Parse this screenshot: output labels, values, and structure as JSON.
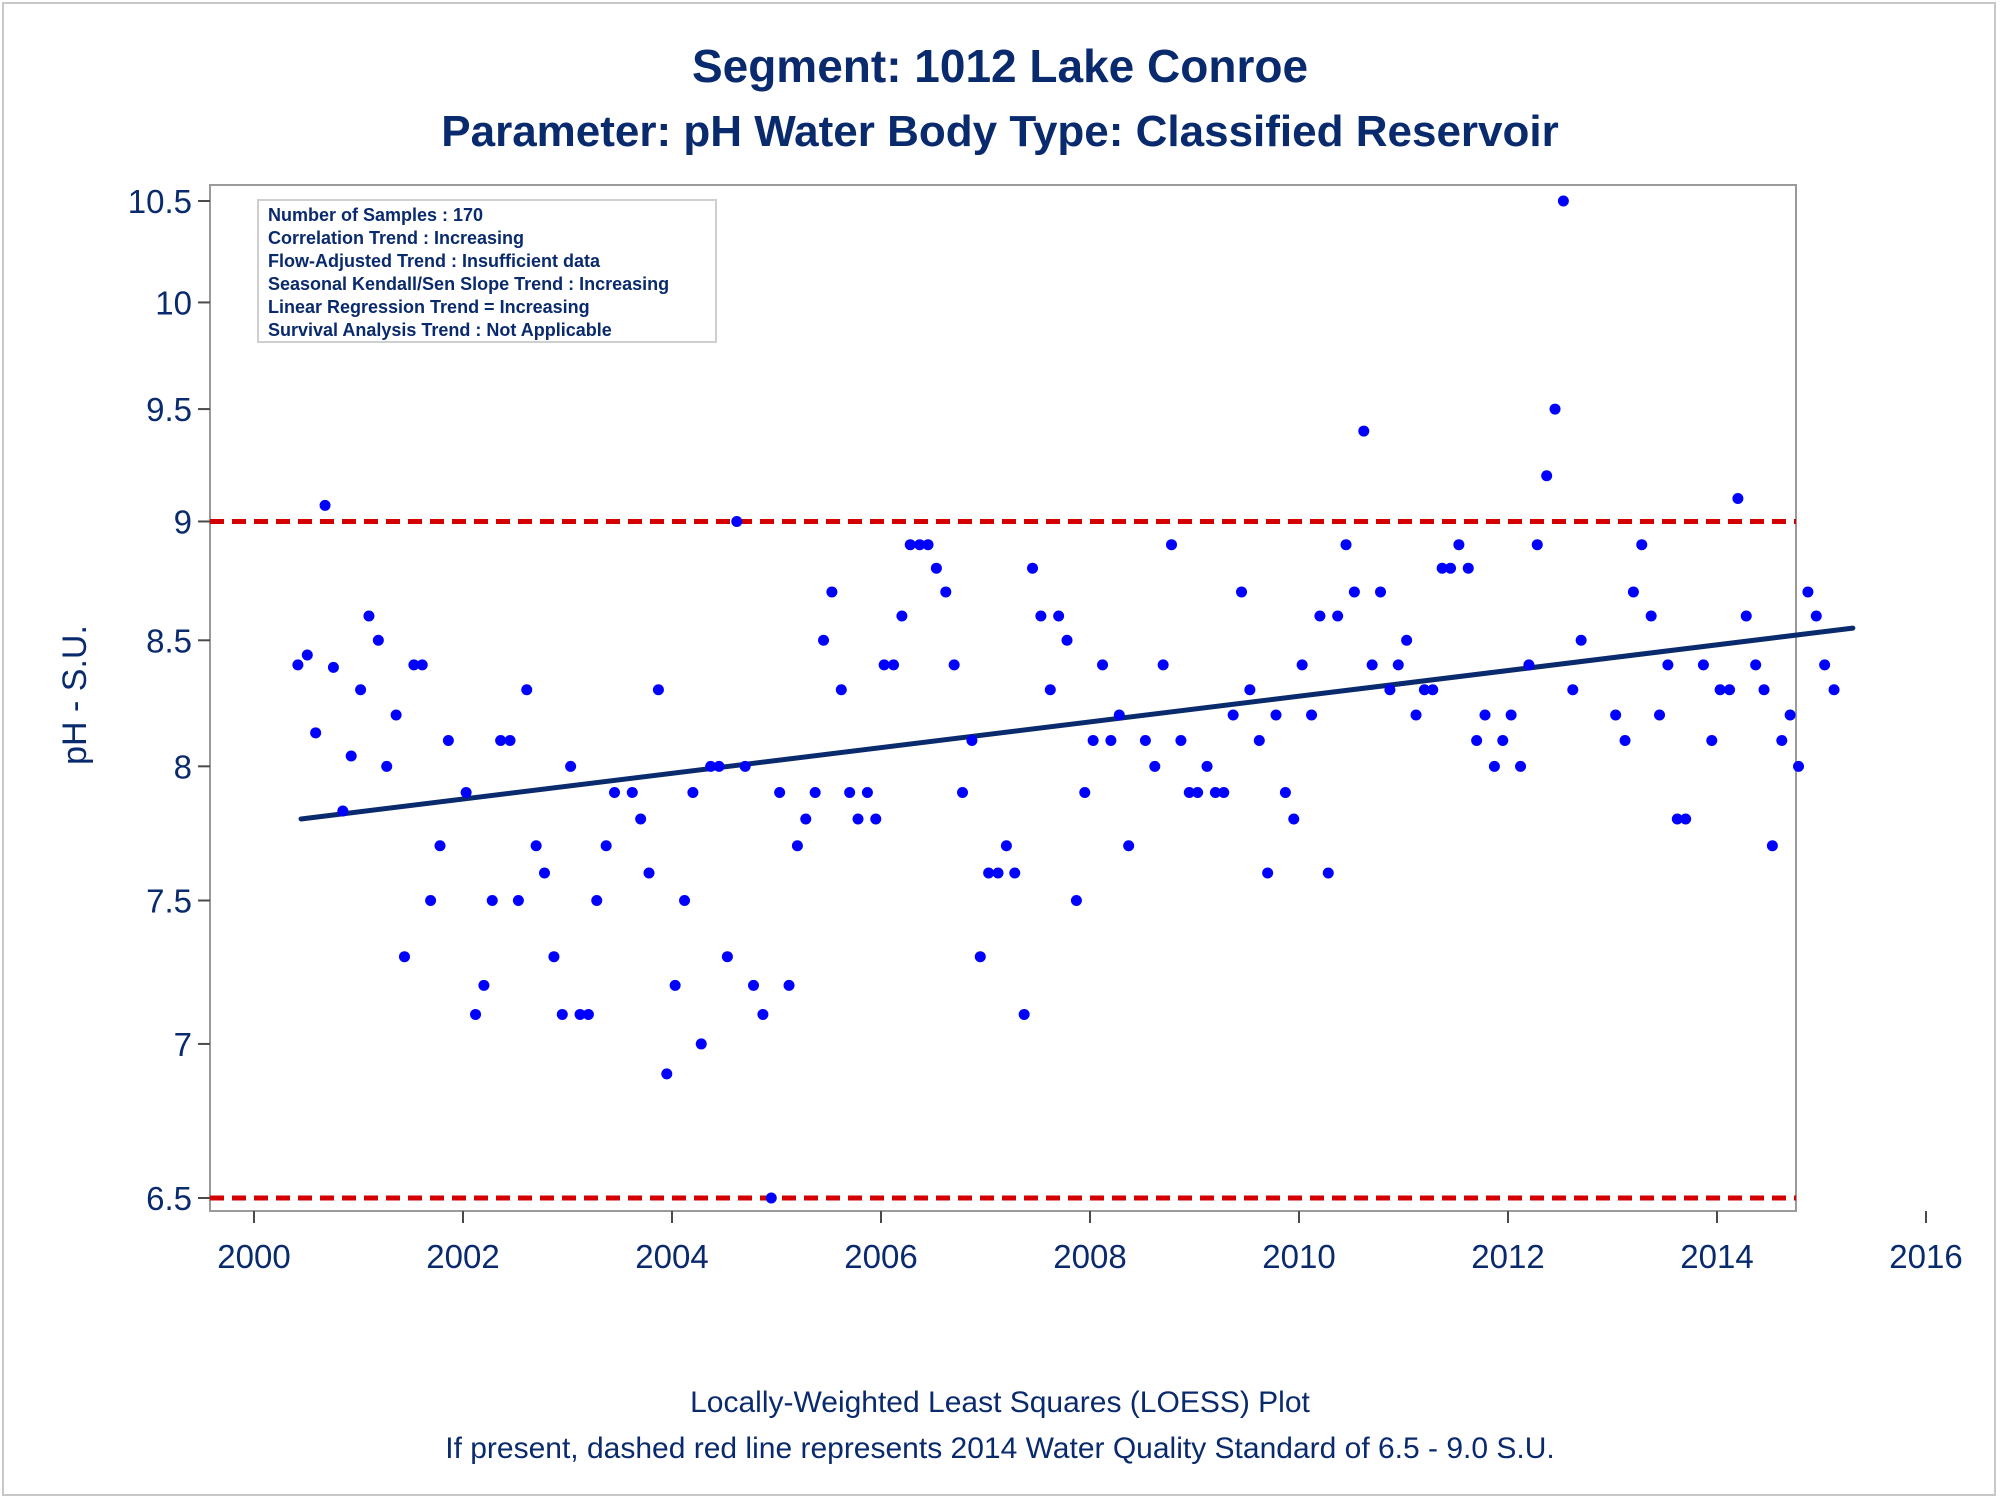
{
  "chart_data": {
    "type": "scatter",
    "title": "Segment: 1012  Lake Conroe",
    "subtitle": "Parameter: pH   Water Body Type: Classified Reservoir",
    "ylabel": "pH - S.U.",
    "xlabel": "",
    "xlim": [
      2000,
      2016
    ],
    "ylim": [
      6.5,
      10.5
    ],
    "y_scale": "log",
    "x_ticks": [
      "2000",
      "2002",
      "2004",
      "2006",
      "2008",
      "2010",
      "2012",
      "2014",
      "2016"
    ],
    "y_ticks": [
      "6.5",
      "7",
      "7.5",
      "8",
      "8.5",
      "9",
      "9.5",
      "10",
      "10.5"
    ],
    "grid": false,
    "info_box": [
      "Number of Samples : 170",
      "Correlation Trend : Increasing",
      "Flow-Adjusted Trend : Insufficient data",
      "Seasonal Kendall/Sen Slope Trend : Increasing",
      "Linear Regression Trend = Increasing",
      "Survival Analysis Trend : Not Applicable"
    ],
    "footnotes": [
      "Locally-Weighted Least Squares (LOESS) Plot",
      "If present, dashed red line represents 2014 Water Quality Standard of 6.5 - 9.0 S.U."
    ],
    "reference_lines": [
      {
        "y": 9.0,
        "style": "dashed",
        "color": "#d40000"
      },
      {
        "y": 6.5,
        "style": "dashed",
        "color": "#d40000"
      }
    ],
    "trend_line": {
      "color": "#0a2a6e",
      "x": [
        2000.45,
        2015.3
      ],
      "y": [
        7.8,
        8.55
      ]
    },
    "series": [
      {
        "color": "#0000ff",
        "points": [
          [
            2000.42,
            8.4
          ],
          [
            2000.51,
            8.44
          ],
          [
            2000.59,
            8.13
          ],
          [
            2000.68,
            9.07
          ],
          [
            2000.76,
            8.39
          ],
          [
            2000.85,
            7.83
          ],
          [
            2000.93,
            8.04
          ],
          [
            2001.02,
            8.3
          ],
          [
            2001.1,
            8.6
          ],
          [
            2001.19,
            8.5
          ],
          [
            2001.27,
            8.0
          ],
          [
            2001.36,
            8.2
          ],
          [
            2001.44,
            7.3
          ],
          [
            2001.53,
            8.4
          ],
          [
            2001.61,
            8.4
          ],
          [
            2001.69,
            7.5
          ],
          [
            2001.78,
            7.7
          ],
          [
            2001.86,
            8.1
          ],
          [
            2002.03,
            7.9
          ],
          [
            2002.12,
            7.1
          ],
          [
            2002.2,
            7.2
          ],
          [
            2002.28,
            7.5
          ],
          [
            2002.36,
            8.1
          ],
          [
            2002.45,
            8.1
          ],
          [
            2002.53,
            7.5
          ],
          [
            2002.61,
            8.3
          ],
          [
            2002.7,
            7.7
          ],
          [
            2002.78,
            7.6
          ],
          [
            2002.87,
            7.3
          ],
          [
            2002.95,
            7.1
          ],
          [
            2003.03,
            8.0
          ],
          [
            2003.12,
            7.1
          ],
          [
            2003.2,
            7.1
          ],
          [
            2003.28,
            7.5
          ],
          [
            2003.37,
            7.7
          ],
          [
            2003.45,
            7.9
          ],
          [
            2003.62,
            7.9
          ],
          [
            2003.7,
            7.8
          ],
          [
            2003.78,
            7.6
          ],
          [
            2003.87,
            8.3
          ],
          [
            2003.95,
            6.9
          ],
          [
            2004.03,
            7.2
          ],
          [
            2004.12,
            7.5
          ],
          [
            2004.2,
            7.9
          ],
          [
            2004.28,
            7.0
          ],
          [
            2004.37,
            8.0
          ],
          [
            2004.45,
            8.0
          ],
          [
            2004.53,
            7.3
          ],
          [
            2004.62,
            9.0
          ],
          [
            2004.7,
            8.0
          ],
          [
            2004.78,
            7.2
          ],
          [
            2004.87,
            7.1
          ],
          [
            2004.95,
            6.5
          ],
          [
            2005.03,
            7.9
          ],
          [
            2005.12,
            7.2
          ],
          [
            2005.2,
            7.7
          ],
          [
            2005.28,
            7.8
          ],
          [
            2005.37,
            7.9
          ],
          [
            2005.45,
            8.5
          ],
          [
            2005.53,
            8.7
          ],
          [
            2005.62,
            8.3
          ],
          [
            2005.7,
            7.9
          ],
          [
            2005.78,
            7.8
          ],
          [
            2005.87,
            7.9
          ],
          [
            2005.95,
            7.8
          ],
          [
            2006.03,
            8.4
          ],
          [
            2006.12,
            8.4
          ],
          [
            2006.2,
            8.6
          ],
          [
            2006.28,
            8.9
          ],
          [
            2006.37,
            8.9
          ],
          [
            2006.45,
            8.9
          ],
          [
            2006.53,
            8.8
          ],
          [
            2006.62,
            8.7
          ],
          [
            2006.7,
            8.4
          ],
          [
            2006.78,
            7.9
          ],
          [
            2006.87,
            8.1
          ],
          [
            2006.95,
            7.3
          ],
          [
            2007.03,
            7.6
          ],
          [
            2007.12,
            7.6
          ],
          [
            2007.2,
            7.7
          ],
          [
            2007.28,
            7.6
          ],
          [
            2007.37,
            7.1
          ],
          [
            2007.45,
            8.8
          ],
          [
            2007.53,
            8.6
          ],
          [
            2007.62,
            8.3
          ],
          [
            2007.7,
            8.6
          ],
          [
            2007.78,
            8.5
          ],
          [
            2007.87,
            7.5
          ],
          [
            2007.95,
            7.9
          ],
          [
            2008.03,
            8.1
          ],
          [
            2008.12,
            8.4
          ],
          [
            2008.2,
            8.1
          ],
          [
            2008.28,
            8.2
          ],
          [
            2008.37,
            7.7
          ],
          [
            2008.53,
            8.1
          ],
          [
            2008.62,
            8.0
          ],
          [
            2008.7,
            8.4
          ],
          [
            2008.78,
            8.9
          ],
          [
            2008.87,
            8.1
          ],
          [
            2008.95,
            7.9
          ],
          [
            2009.03,
            7.9
          ],
          [
            2009.12,
            8.0
          ],
          [
            2009.2,
            7.9
          ],
          [
            2009.28,
            7.9
          ],
          [
            2009.37,
            8.2
          ],
          [
            2009.45,
            8.7
          ],
          [
            2009.53,
            8.3
          ],
          [
            2009.62,
            8.1
          ],
          [
            2009.7,
            7.6
          ],
          [
            2009.78,
            8.2
          ],
          [
            2009.87,
            7.9
          ],
          [
            2009.95,
            7.8
          ],
          [
            2010.03,
            8.4
          ],
          [
            2010.12,
            8.2
          ],
          [
            2010.2,
            8.6
          ],
          [
            2010.28,
            7.6
          ],
          [
            2010.37,
            8.6
          ],
          [
            2010.45,
            8.9
          ],
          [
            2010.53,
            8.7
          ],
          [
            2010.62,
            9.4
          ],
          [
            2010.7,
            8.4
          ],
          [
            2010.78,
            8.7
          ],
          [
            2010.87,
            8.3
          ],
          [
            2010.95,
            8.4
          ],
          [
            2011.03,
            8.5
          ],
          [
            2011.12,
            8.2
          ],
          [
            2011.2,
            8.3
          ],
          [
            2011.28,
            8.3
          ],
          [
            2011.37,
            8.8
          ],
          [
            2011.45,
            8.8
          ],
          [
            2011.53,
            8.9
          ],
          [
            2011.62,
            8.8
          ],
          [
            2011.7,
            8.1
          ],
          [
            2011.78,
            8.2
          ],
          [
            2011.87,
            8.0
          ],
          [
            2011.95,
            8.1
          ],
          [
            2012.03,
            8.2
          ],
          [
            2012.12,
            8.0
          ],
          [
            2012.2,
            8.4
          ],
          [
            2012.28,
            8.9
          ],
          [
            2012.37,
            9.2
          ],
          [
            2012.45,
            9.5
          ],
          [
            2012.53,
            10.5
          ],
          [
            2012.62,
            8.3
          ],
          [
            2012.7,
            8.5
          ],
          [
            2013.03,
            8.2
          ],
          [
            2013.12,
            8.1
          ],
          [
            2013.2,
            8.7
          ],
          [
            2013.28,
            8.9
          ],
          [
            2013.37,
            8.6
          ],
          [
            2013.45,
            8.2
          ],
          [
            2013.53,
            8.4
          ],
          [
            2013.62,
            7.8
          ],
          [
            2013.7,
            7.8
          ],
          [
            2013.87,
            8.4
          ],
          [
            2013.95,
            8.1
          ],
          [
            2014.03,
            8.3
          ],
          [
            2014.12,
            8.3
          ],
          [
            2014.2,
            9.1
          ],
          [
            2014.28,
            8.6
          ],
          [
            2014.37,
            8.4
          ],
          [
            2014.45,
            8.3
          ],
          [
            2014.53,
            7.7
          ],
          [
            2014.62,
            8.1
          ],
          [
            2014.7,
            8.2
          ],
          [
            2014.78,
            8.0
          ],
          [
            2014.87,
            8.7
          ],
          [
            2014.95,
            8.6
          ],
          [
            2015.03,
            8.4
          ],
          [
            2015.12,
            8.3
          ]
        ]
      }
    ]
  }
}
